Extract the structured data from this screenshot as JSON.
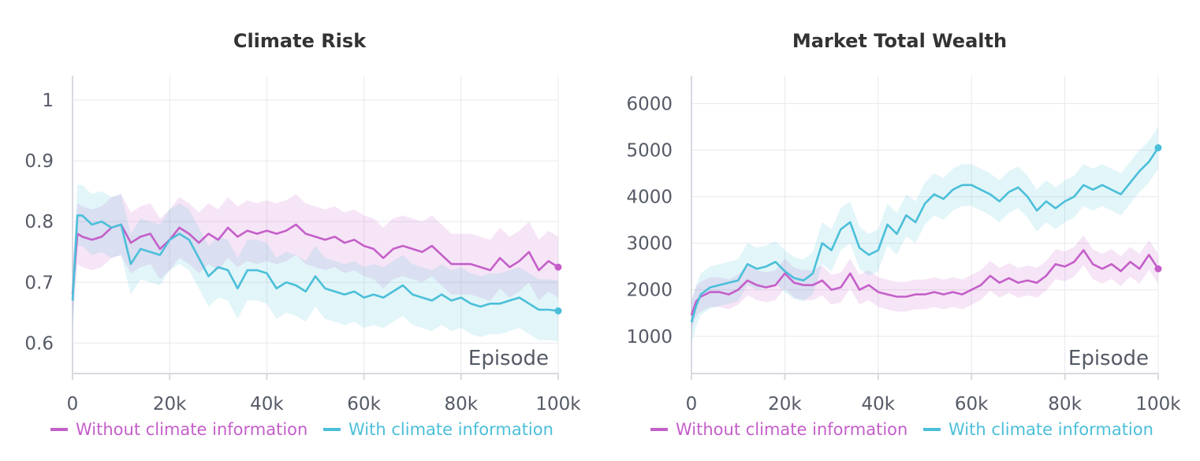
{
  "colors": {
    "without": "#c45fc9",
    "with": "#4bbfd9",
    "grid": "#e8e8ee",
    "axis": "#d9d9e0"
  },
  "legend": {
    "without_label": "Without climate information",
    "with_label": "With climate information"
  },
  "chart_data": [
    {
      "type": "line",
      "title": "Climate Risk",
      "xlabel": "Episode",
      "ylabel": "",
      "xlim": [
        0,
        100000
      ],
      "ylim": [
        0.55,
        1.04
      ],
      "xticks": [
        0,
        20000,
        40000,
        60000,
        80000,
        100000
      ],
      "xtick_labels": [
        "0",
        "20k",
        "40k",
        "60k",
        "80k",
        "100k"
      ],
      "yticks": [
        0.6,
        0.7,
        0.8,
        0.9,
        1
      ],
      "ytick_labels": [
        "0.6",
        "0.7",
        "0.8",
        "0.9",
        "1"
      ],
      "series": [
        {
          "name": "Without climate information",
          "key": "without",
          "x": [
            0,
            1000,
            2000,
            4000,
            6000,
            8000,
            10000,
            12000,
            14000,
            16000,
            18000,
            20000,
            22000,
            24000,
            26000,
            28000,
            30000,
            32000,
            34000,
            36000,
            38000,
            40000,
            42000,
            44000,
            46000,
            48000,
            50000,
            52000,
            54000,
            56000,
            58000,
            60000,
            62000,
            64000,
            66000,
            68000,
            70000,
            72000,
            74000,
            76000,
            78000,
            80000,
            82000,
            84000,
            86000,
            88000,
            90000,
            92000,
            94000,
            96000,
            98000,
            100000
          ],
          "values": [
            0.68,
            0.78,
            0.775,
            0.77,
            0.775,
            0.79,
            0.795,
            0.765,
            0.775,
            0.78,
            0.755,
            0.77,
            0.79,
            0.78,
            0.765,
            0.78,
            0.77,
            0.79,
            0.775,
            0.785,
            0.78,
            0.785,
            0.78,
            0.785,
            0.795,
            0.78,
            0.775,
            0.77,
            0.775,
            0.765,
            0.77,
            0.76,
            0.755,
            0.74,
            0.755,
            0.76,
            0.755,
            0.75,
            0.76,
            0.745,
            0.73,
            0.73,
            0.73,
            0.725,
            0.72,
            0.74,
            0.725,
            0.735,
            0.75,
            0.72,
            0.735,
            0.725
          ],
          "band_width": 0.05
        },
        {
          "name": "With climate information",
          "key": "with",
          "x": [
            0,
            1000,
            2000,
            4000,
            6000,
            8000,
            10000,
            12000,
            14000,
            16000,
            18000,
            20000,
            22000,
            24000,
            26000,
            28000,
            30000,
            32000,
            34000,
            36000,
            38000,
            40000,
            42000,
            44000,
            46000,
            48000,
            50000,
            52000,
            54000,
            56000,
            58000,
            60000,
            62000,
            64000,
            66000,
            68000,
            70000,
            72000,
            74000,
            76000,
            78000,
            80000,
            82000,
            84000,
            86000,
            88000,
            90000,
            92000,
            94000,
            96000,
            98000,
            100000
          ],
          "values": [
            0.67,
            0.81,
            0.81,
            0.795,
            0.8,
            0.79,
            0.795,
            0.73,
            0.755,
            0.75,
            0.745,
            0.77,
            0.78,
            0.77,
            0.74,
            0.71,
            0.725,
            0.72,
            0.69,
            0.72,
            0.72,
            0.715,
            0.69,
            0.7,
            0.695,
            0.685,
            0.71,
            0.69,
            0.685,
            0.68,
            0.685,
            0.675,
            0.68,
            0.675,
            0.685,
            0.695,
            0.68,
            0.675,
            0.67,
            0.68,
            0.67,
            0.675,
            0.665,
            0.66,
            0.665,
            0.665,
            0.67,
            0.675,
            0.665,
            0.655,
            0.655,
            0.653
          ],
          "band_width": 0.05
        }
      ]
    },
    {
      "type": "line",
      "title": "Market Total Wealth",
      "xlabel": "Episode",
      "ylabel": "",
      "xlim": [
        0,
        100000
      ],
      "ylim": [
        200,
        6600
      ],
      "xticks": [
        0,
        20000,
        40000,
        60000,
        80000,
        100000
      ],
      "xtick_labels": [
        "0",
        "20k",
        "40k",
        "60k",
        "80k",
        "100k"
      ],
      "yticks": [
        1000,
        2000,
        3000,
        4000,
        5000,
        6000
      ],
      "ytick_labels": [
        "1000",
        "2000",
        "3000",
        "4000",
        "5000",
        "6000"
      ],
      "series": [
        {
          "name": "Without climate information",
          "key": "without",
          "x": [
            0,
            1000,
            2000,
            4000,
            6000,
            8000,
            10000,
            12000,
            14000,
            16000,
            18000,
            20000,
            22000,
            24000,
            26000,
            28000,
            30000,
            32000,
            34000,
            36000,
            38000,
            40000,
            42000,
            44000,
            46000,
            48000,
            50000,
            52000,
            54000,
            56000,
            58000,
            60000,
            62000,
            64000,
            66000,
            68000,
            70000,
            72000,
            74000,
            76000,
            78000,
            80000,
            82000,
            84000,
            86000,
            88000,
            90000,
            92000,
            94000,
            96000,
            98000,
            100000
          ],
          "values": [
            1450,
            1750,
            1850,
            1950,
            1950,
            1900,
            2000,
            2200,
            2100,
            2050,
            2100,
            2350,
            2150,
            2100,
            2100,
            2200,
            2000,
            2050,
            2350,
            2000,
            2100,
            1950,
            1900,
            1850,
            1850,
            1900,
            1900,
            1950,
            1900,
            1950,
            1900,
            2000,
            2100,
            2300,
            2150,
            2250,
            2150,
            2200,
            2150,
            2300,
            2550,
            2500,
            2600,
            2850,
            2550,
            2450,
            2550,
            2400,
            2600,
            2450,
            2750,
            2450
          ],
          "band_width": 320
        },
        {
          "name": "With climate information",
          "key": "with",
          "x": [
            0,
            1000,
            2000,
            4000,
            6000,
            8000,
            10000,
            12000,
            14000,
            16000,
            18000,
            20000,
            22000,
            24000,
            26000,
            28000,
            30000,
            32000,
            34000,
            36000,
            38000,
            40000,
            42000,
            44000,
            46000,
            48000,
            50000,
            52000,
            54000,
            56000,
            58000,
            60000,
            62000,
            64000,
            66000,
            68000,
            70000,
            72000,
            74000,
            76000,
            78000,
            80000,
            82000,
            84000,
            86000,
            88000,
            90000,
            92000,
            94000,
            96000,
            98000,
            100000
          ],
          "values": [
            1300,
            1650,
            1900,
            2050,
            2100,
            2150,
            2200,
            2550,
            2450,
            2500,
            2600,
            2400,
            2250,
            2200,
            2350,
            3000,
            2850,
            3300,
            3450,
            2900,
            2750,
            2850,
            3400,
            3200,
            3600,
            3450,
            3850,
            4050,
            3950,
            4150,
            4250,
            4250,
            4150,
            4050,
            3900,
            4100,
            4200,
            4000,
            3700,
            3900,
            3750,
            3900,
            4000,
            4250,
            4150,
            4250,
            4150,
            4050,
            4300,
            4550,
            4750,
            5050
          ],
          "band_width": 450
        }
      ]
    }
  ]
}
